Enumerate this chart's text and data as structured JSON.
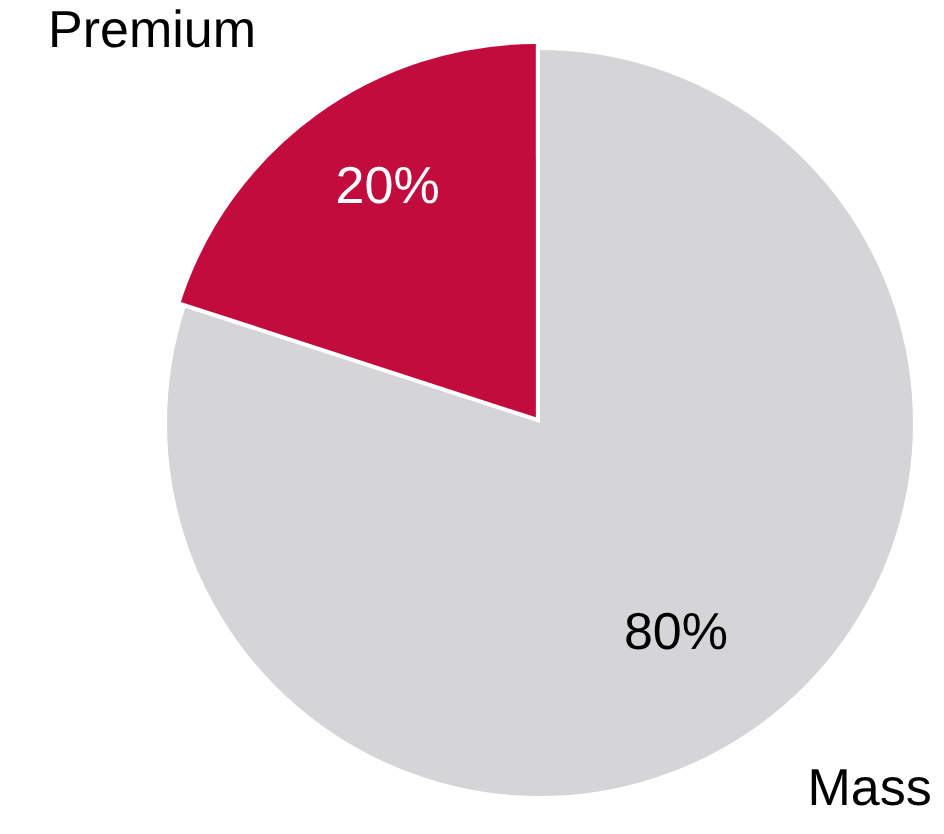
{
  "chart_data": {
    "type": "pie",
    "categories": [
      "Premium",
      "Mass"
    ],
    "values": [
      20,
      80
    ],
    "colors": [
      "#c20c3e",
      "#d5d5d7"
    ],
    "value_labels": [
      "20%",
      "80%"
    ]
  }
}
